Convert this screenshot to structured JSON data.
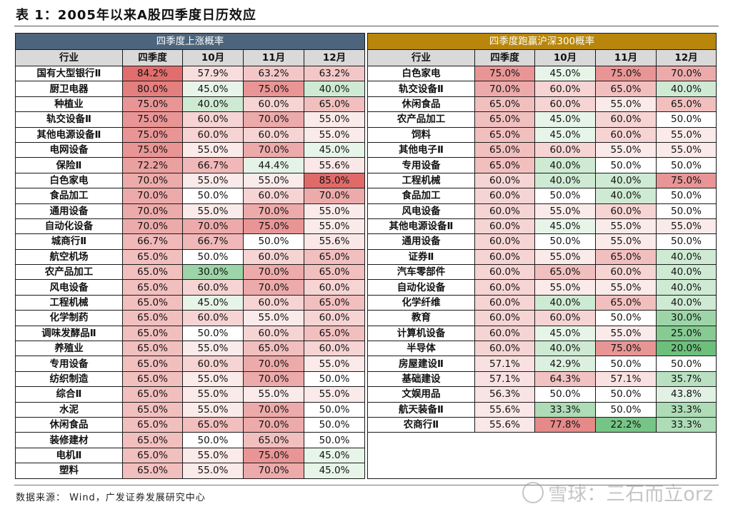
{
  "title": "表 1：2005年以来A股四季度日历效应",
  "colors": {
    "left_header": "#4d657c",
    "right_header": "#b8860b",
    "col_header": "#d9d9d9",
    "high": "#e06a6a",
    "mid": "#ffffff",
    "low": "#6cc07c"
  },
  "left_table": {
    "group_title": "四季度上涨概率",
    "columns": [
      "行业",
      "四季度",
      "10月",
      "11月",
      "12月"
    ],
    "rows": [
      [
        "国有大型银行Ⅱ",
        "84.2%",
        "57.9%",
        "63.2%",
        "63.2%"
      ],
      [
        "厨卫电器",
        "80.0%",
        "45.0%",
        "75.0%",
        "40.0%"
      ],
      [
        "种植业",
        "75.0%",
        "40.0%",
        "60.0%",
        "65.0%"
      ],
      [
        "轨交设备Ⅱ",
        "75.0%",
        "60.0%",
        "70.0%",
        "55.0%"
      ],
      [
        "其他电源设备Ⅱ",
        "75.0%",
        "60.0%",
        "60.0%",
        "55.0%"
      ],
      [
        "电网设备",
        "75.0%",
        "55.0%",
        "70.0%",
        "45.0%"
      ],
      [
        "保险Ⅱ",
        "72.2%",
        "66.7%",
        "44.4%",
        "55.6%"
      ],
      [
        "白色家电",
        "70.0%",
        "55.0%",
        "55.0%",
        "85.0%"
      ],
      [
        "食品加工",
        "70.0%",
        "50.0%",
        "60.0%",
        "70.0%"
      ],
      [
        "通用设备",
        "70.0%",
        "55.0%",
        "70.0%",
        "55.0%"
      ],
      [
        "自动化设备",
        "70.0%",
        "70.0%",
        "75.0%",
        "55.0%"
      ],
      [
        "城商行Ⅱ",
        "66.7%",
        "66.7%",
        "50.0%",
        "55.6%"
      ],
      [
        "航空机场",
        "65.0%",
        "50.0%",
        "60.0%",
        "65.0%"
      ],
      [
        "农产品加工",
        "65.0%",
        "30.0%",
        "70.0%",
        "65.0%"
      ],
      [
        "风电设备",
        "65.0%",
        "60.0%",
        "70.0%",
        "60.0%"
      ],
      [
        "工程机械",
        "65.0%",
        "45.0%",
        "60.0%",
        "65.0%"
      ],
      [
        "化学制药",
        "65.0%",
        "60.0%",
        "55.0%",
        "60.0%"
      ],
      [
        "调味发酵品Ⅱ",
        "65.0%",
        "50.0%",
        "60.0%",
        "65.0%"
      ],
      [
        "养殖业",
        "65.0%",
        "55.0%",
        "65.0%",
        "60.0%"
      ],
      [
        "专用设备",
        "65.0%",
        "60.0%",
        "70.0%",
        "55.0%"
      ],
      [
        "纺织制造",
        "65.0%",
        "55.0%",
        "70.0%",
        "50.0%"
      ],
      [
        "综合Ⅱ",
        "65.0%",
        "55.0%",
        "55.0%",
        "55.0%"
      ],
      [
        "水泥",
        "65.0%",
        "55.0%",
        "70.0%",
        "50.0%"
      ],
      [
        "休闲食品",
        "65.0%",
        "65.0%",
        "70.0%",
        "50.0%"
      ],
      [
        "装修建材",
        "65.0%",
        "50.0%",
        "65.0%",
        "50.0%"
      ],
      [
        "电机Ⅱ",
        "65.0%",
        "55.0%",
        "75.0%",
        "45.0%"
      ],
      [
        "塑料",
        "65.0%",
        "55.0%",
        "70.0%",
        "45.0%"
      ]
    ]
  },
  "right_table": {
    "group_title": "四季度跑赢沪深300概率",
    "columns": [
      "行业",
      "四季度",
      "10月",
      "11月",
      "12月"
    ],
    "rows": [
      [
        "白色家电",
        "75.0%",
        "45.0%",
        "75.0%",
        "70.0%"
      ],
      [
        "轨交设备Ⅱ",
        "70.0%",
        "60.0%",
        "65.0%",
        "40.0%"
      ],
      [
        "休闲食品",
        "65.0%",
        "60.0%",
        "55.0%",
        "65.0%"
      ],
      [
        "农产品加工",
        "65.0%",
        "45.0%",
        "60.0%",
        "50.0%"
      ],
      [
        "饲料",
        "65.0%",
        "45.0%",
        "60.0%",
        "55.0%"
      ],
      [
        "其他电子Ⅱ",
        "65.0%",
        "60.0%",
        "55.0%",
        "55.0%"
      ],
      [
        "专用设备",
        "65.0%",
        "40.0%",
        "50.0%",
        "50.0%"
      ],
      [
        "工程机械",
        "60.0%",
        "40.0%",
        "40.0%",
        "75.0%"
      ],
      [
        "食品加工",
        "60.0%",
        "50.0%",
        "40.0%",
        "50.0%"
      ],
      [
        "风电设备",
        "60.0%",
        "55.0%",
        "60.0%",
        "50.0%"
      ],
      [
        "其他电源设备Ⅱ",
        "60.0%",
        "45.0%",
        "55.0%",
        "55.0%"
      ],
      [
        "通用设备",
        "60.0%",
        "50.0%",
        "55.0%",
        "50.0%"
      ],
      [
        "证券Ⅱ",
        "60.0%",
        "55.0%",
        "65.0%",
        "40.0%"
      ],
      [
        "汽车零部件",
        "60.0%",
        "65.0%",
        "60.0%",
        "40.0%"
      ],
      [
        "自动化设备",
        "60.0%",
        "55.0%",
        "55.0%",
        "40.0%"
      ],
      [
        "化学纤维",
        "60.0%",
        "40.0%",
        "65.0%",
        "40.0%"
      ],
      [
        "教育",
        "60.0%",
        "60.0%",
        "50.0%",
        "30.0%"
      ],
      [
        "计算机设备",
        "60.0%",
        "45.0%",
        "55.0%",
        "25.0%"
      ],
      [
        "半导体",
        "60.0%",
        "40.0%",
        "75.0%",
        "20.0%"
      ],
      [
        "房屋建设Ⅱ",
        "57.1%",
        "42.9%",
        "50.0%",
        "50.0%"
      ],
      [
        "基础建设",
        "57.1%",
        "64.3%",
        "57.1%",
        "35.7%"
      ],
      [
        "文娱用品",
        "56.3%",
        "50.0%",
        "50.0%",
        "43.8%"
      ],
      [
        "航天装备Ⅱ",
        "55.6%",
        "33.3%",
        "50.0%",
        "33.3%"
      ],
      [
        "农商行Ⅱ",
        "55.6%",
        "77.8%",
        "22.2%",
        "33.3%"
      ]
    ]
  },
  "source": "数据来源： Wind，广发证券发展研究中心",
  "watermark": "雪球：三石而立orz"
}
